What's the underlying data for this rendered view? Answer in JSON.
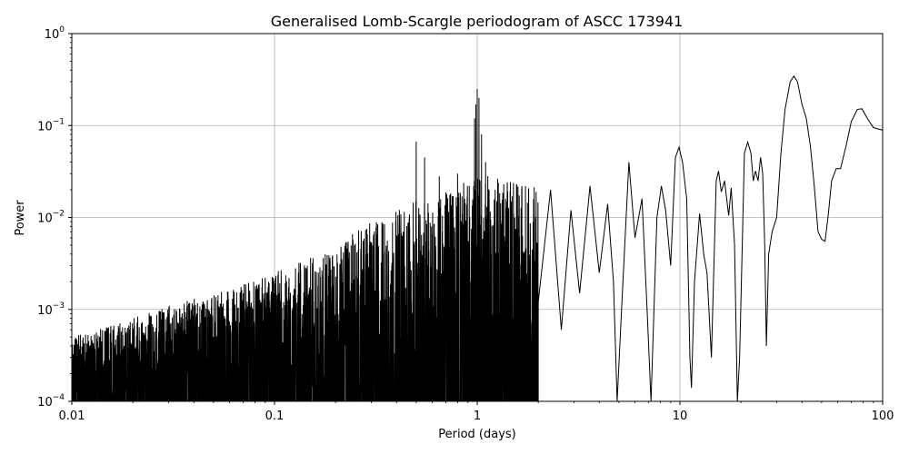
{
  "chart_data": {
    "type": "line",
    "title": "Generalised Lomb-Scargle periodogram of ASCC 173941",
    "xlabel": "Period (days)",
    "ylabel": "Power",
    "xscale": "log",
    "yscale": "log",
    "xlim": [
      0.01,
      100
    ],
    "ylim": [
      0.0001,
      1
    ],
    "grid": true,
    "x_ticks": [
      {
        "value": 0.01,
        "label": "0.01"
      },
      {
        "value": 0.1,
        "label": "0.1"
      },
      {
        "value": 1,
        "label": "1"
      },
      {
        "value": 10,
        "label": "10"
      },
      {
        "value": 100,
        "label": "100"
      }
    ],
    "y_ticks": [
      {
        "value": 0.0001,
        "exp": "-4"
      },
      {
        "value": 0.001,
        "exp": "-3"
      },
      {
        "value": 0.01,
        "exp": "-2"
      },
      {
        "value": 0.1,
        "exp": "-1"
      },
      {
        "value": 1,
        "exp": "0"
      }
    ],
    "y_tick_base": "10",
    "color": "#000000",
    "series": [
      {
        "smooth_envelope": [
          [
            2.0,
            0.0012
          ],
          [
            2.3,
            0.02
          ],
          [
            2.6,
            0.0006
          ],
          [
            2.9,
            0.012
          ],
          [
            3.2,
            0.0015
          ],
          [
            3.6,
            0.022
          ],
          [
            4.0,
            0.0025
          ],
          [
            4.4,
            0.014
          ],
          [
            4.7,
            0.002
          ],
          [
            4.9,
            9e-05
          ],
          [
            5.2,
            0.0015
          ],
          [
            5.6,
            0.04
          ],
          [
            6.0,
            0.006
          ],
          [
            6.5,
            0.016
          ],
          [
            6.9,
            0.0009
          ],
          [
            7.2,
            9e-05
          ],
          [
            7.7,
            0.01
          ],
          [
            8.1,
            0.022
          ],
          [
            8.5,
            0.012
          ],
          [
            9.0,
            0.003
          ],
          [
            9.5,
            0.045
          ],
          [
            9.9,
            0.058
          ],
          [
            10.3,
            0.04
          ],
          [
            10.8,
            0.016
          ],
          [
            11.2,
            0.0003
          ],
          [
            11.4,
            0.00014
          ],
          [
            11.8,
            0.002
          ],
          [
            12.5,
            0.011
          ],
          [
            13.1,
            0.004
          ],
          [
            13.6,
            0.0025
          ],
          [
            14.3,
            0.0003
          ],
          [
            15.1,
            0.025
          ],
          [
            15.5,
            0.032
          ],
          [
            16.0,
            0.019
          ],
          [
            16.6,
            0.025
          ],
          [
            17.4,
            0.0105
          ],
          [
            17.9,
            0.021
          ],
          [
            18.6,
            0.005
          ],
          [
            19.2,
            9e-05
          ],
          [
            19.7,
            0.0003
          ],
          [
            20.8,
            0.05
          ],
          [
            21.6,
            0.066
          ],
          [
            22.4,
            0.05
          ],
          [
            23.0,
            0.025
          ],
          [
            23.6,
            0.032
          ],
          [
            24.3,
            0.025
          ],
          [
            25.0,
            0.045
          ],
          [
            25.6,
            0.03
          ],
          [
            26.2,
            0.005
          ],
          [
            26.7,
            0.0004
          ],
          [
            27.4,
            0.004
          ],
          [
            28.5,
            0.007
          ],
          [
            30.0,
            0.01
          ],
          [
            31.5,
            0.05
          ],
          [
            33.0,
            0.15
          ],
          [
            35.0,
            0.3
          ],
          [
            36.5,
            0.345
          ],
          [
            38.0,
            0.3
          ],
          [
            40.0,
            0.17
          ],
          [
            42.0,
            0.12
          ],
          [
            44.0,
            0.06
          ],
          [
            46.0,
            0.022
          ],
          [
            48.0,
            0.007
          ],
          [
            50.0,
            0.0058
          ],
          [
            52.0,
            0.0055
          ],
          [
            54.0,
            0.011
          ],
          [
            56.0,
            0.025
          ],
          [
            59.0,
            0.034
          ],
          [
            62.0,
            0.034
          ],
          [
            66.0,
            0.06
          ],
          [
            70.0,
            0.11
          ],
          [
            75.0,
            0.15
          ],
          [
            79.0,
            0.152
          ],
          [
            84.0,
            0.12
          ],
          [
            90.0,
            0.095
          ],
          [
            100.0,
            0.089
          ]
        ],
        "noise": {
          "x_range": [
            0.01,
            2.0
          ],
          "floor_y": 0.0001,
          "envelope": [
            [
              0.01,
              0.0005
            ],
            [
              0.02,
              0.0008
            ],
            [
              0.03,
              0.0011
            ],
            [
              0.05,
              0.0015
            ],
            [
              0.1,
              0.0025
            ],
            [
              0.2,
              0.005
            ],
            [
              0.3,
              0.009
            ],
            [
              0.5,
              0.015
            ],
            [
              0.7,
              0.02
            ],
            [
              0.9,
              0.025
            ],
            [
              1.0,
              0.03
            ],
            [
              1.5,
              0.025
            ],
            [
              2.0,
              0.022
            ]
          ],
          "spikes": [
            [
              0.5,
              0.067
            ],
            [
              0.55,
              0.045
            ],
            [
              0.65,
              0.028
            ],
            [
              0.8,
              0.03
            ],
            [
              0.97,
              0.12
            ],
            [
              0.985,
              0.17
            ],
            [
              1.0,
              0.25
            ],
            [
              1.02,
              0.2
            ],
            [
              1.05,
              0.08
            ],
            [
              1.1,
              0.04
            ]
          ]
        }
      }
    ]
  }
}
